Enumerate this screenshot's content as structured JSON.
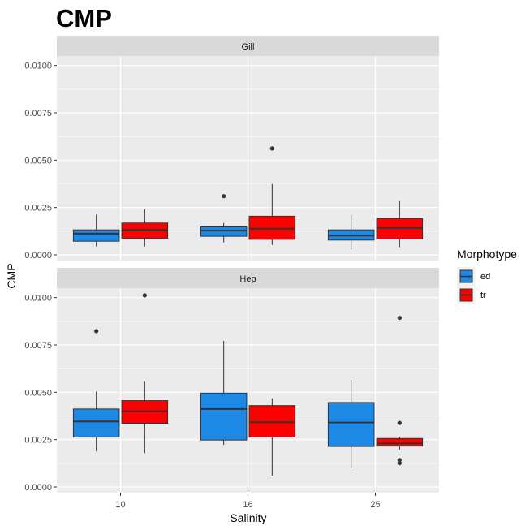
{
  "chart_data": {
    "type": "boxplot",
    "title": "CMP",
    "xlabel": "Salinity",
    "ylabel": "CMP",
    "categories": [
      "10",
      "16",
      "25"
    ],
    "ylim": [
      -0.0003,
      0.0105
    ],
    "yticks": [
      "0.0000",
      "0.0025",
      "0.0050",
      "0.0075",
      "0.0100"
    ],
    "ytick_values": [
      0,
      0.0025,
      0.005,
      0.0075,
      0.01
    ],
    "legend": {
      "title": "Morphotype",
      "placement": "right",
      "entries": [
        {
          "label": "ed",
          "color": "#1e88e5"
        },
        {
          "label": "tr",
          "color": "#ff0000"
        }
      ]
    },
    "panels": [
      {
        "name": "Gill",
        "boxes": [
          {
            "category": "10",
            "group": "ed",
            "whisker_low": 0.00045,
            "q1": 0.00072,
            "median": 0.00112,
            "q3": 0.00132,
            "whisker_high": 0.00212,
            "outliers": []
          },
          {
            "category": "10",
            "group": "tr",
            "whisker_low": 0.00045,
            "q1": 0.00088,
            "median": 0.00132,
            "q3": 0.00168,
            "whisker_high": 0.00242,
            "outliers": []
          },
          {
            "category": "16",
            "group": "ed",
            "whisker_low": 0.00065,
            "q1": 0.00098,
            "median": 0.00128,
            "q3": 0.00148,
            "whisker_high": 0.00168,
            "outliers": [
              0.0031
            ]
          },
          {
            "category": "16",
            "group": "tr",
            "whisker_low": 0.00052,
            "q1": 0.00082,
            "median": 0.00138,
            "q3": 0.00204,
            "whisker_high": 0.00374,
            "outliers": [
              0.00562
            ]
          },
          {
            "category": "25",
            "group": "ed",
            "whisker_low": 0.00028,
            "q1": 0.00078,
            "median": 0.00102,
            "q3": 0.00132,
            "whisker_high": 0.00212,
            "outliers": []
          },
          {
            "category": "25",
            "group": "tr",
            "whisker_low": 0.0004,
            "q1": 0.00084,
            "median": 0.00142,
            "q3": 0.00192,
            "whisker_high": 0.00284,
            "outliers": []
          }
        ]
      },
      {
        "name": "Hep",
        "boxes": [
          {
            "category": "10",
            "group": "ed",
            "whisker_low": 0.00188,
            "q1": 0.00264,
            "median": 0.00346,
            "q3": 0.00412,
            "whisker_high": 0.00504,
            "outliers": [
              0.00823
            ]
          },
          {
            "category": "10",
            "group": "tr",
            "whisker_low": 0.00178,
            "q1": 0.00336,
            "median": 0.004,
            "q3": 0.00456,
            "whisker_high": 0.00556,
            "outliers": [
              0.01012
            ]
          },
          {
            "category": "16",
            "group": "ed",
            "whisker_low": 0.00222,
            "q1": 0.00248,
            "median": 0.00412,
            "q3": 0.00496,
            "whisker_high": 0.00772,
            "outliers": []
          },
          {
            "category": "16",
            "group": "tr",
            "whisker_low": 0.0006,
            "q1": 0.00264,
            "median": 0.00342,
            "q3": 0.0043,
            "whisker_high": 0.00468,
            "outliers": []
          },
          {
            "category": "25",
            "group": "ed",
            "whisker_low": 0.001,
            "q1": 0.00214,
            "median": 0.0034,
            "q3": 0.00446,
            "whisker_high": 0.00566,
            "outliers": []
          },
          {
            "category": "25",
            "group": "tr",
            "whisker_low": 0.00196,
            "q1": 0.00216,
            "median": 0.0023,
            "q3": 0.00256,
            "whisker_high": 0.00266,
            "outliers": [
              0.00893,
              0.00338,
              0.00142,
              0.00126
            ]
          }
        ]
      }
    ]
  }
}
